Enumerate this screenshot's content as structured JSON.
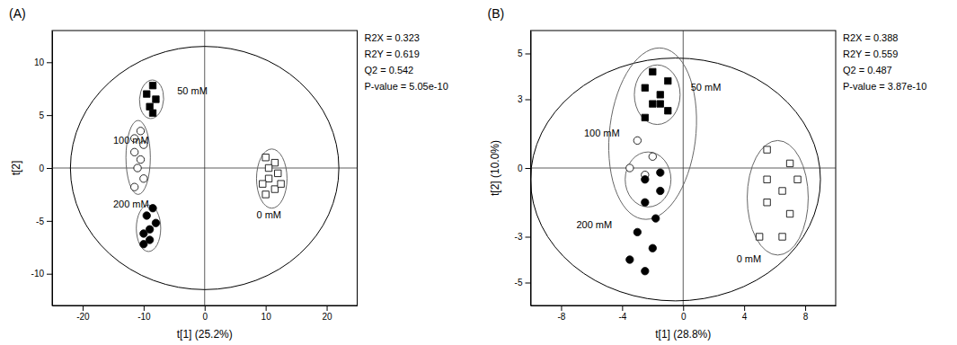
{
  "chart_data": [
    {
      "type": "scatter",
      "title": "(A)",
      "x_label": "t[1] (25.2%)",
      "y_label": "t[2]",
      "xlim": [
        -25,
        25
      ],
      "ylim": [
        -13,
        13
      ],
      "xticks": [
        -20,
        -10,
        0,
        10,
        20
      ],
      "yticks": [
        -10,
        -5,
        0,
        5,
        10
      ],
      "grid": false,
      "annotations": [
        "R2X = 0.323",
        "R2Y = 0.619",
        "Q2 = 0.542",
        "P-value = 5.05e-10"
      ],
      "hlines": [
        0
      ],
      "vlines": [
        0
      ],
      "big_ellipse": {
        "cx": 0,
        "cy": 0,
        "rx": 22,
        "ry": 11.5,
        "angle": 0
      },
      "series": [
        {
          "name": "50 mM",
          "marker": "square",
          "color": "black",
          "label_pos": [
            -4.5,
            7.2
          ],
          "x": [
            -8.5,
            -9.5,
            -8.0,
            -9.0,
            -8.5
          ],
          "values": [
            7.8,
            7.0,
            6.5,
            5.8,
            5.2
          ],
          "ellipse": {
            "cx": -8.7,
            "cy": 6.5,
            "rx": 2.0,
            "ry": 1.8,
            "angle": 20
          }
        },
        {
          "name": "100 mM",
          "marker": "circle",
          "color": "white",
          "label_pos": [
            -15.0,
            2.5
          ],
          "x": [
            -10.5,
            -11.5,
            -10.0,
            -11.5,
            -10.5,
            -11.0,
            -10.0,
            -11.5
          ],
          "values": [
            3.5,
            2.8,
            2.2,
            1.5,
            0.8,
            0.0,
            -1.0,
            -1.8
          ],
          "ellipse": {
            "cx": -10.9,
            "cy": 1.0,
            "rx": 2.0,
            "ry": 3.5,
            "angle": 0
          }
        },
        {
          "name": "200 mM",
          "marker": "circle",
          "color": "black",
          "label_pos": [
            -15.0,
            -3.5
          ],
          "x": [
            -8.5,
            -9.5,
            -8.0,
            -9.0,
            -10.0,
            -9.0,
            -10.0
          ],
          "values": [
            -3.8,
            -4.5,
            -5.2,
            -5.8,
            -6.2,
            -6.8,
            -7.2
          ],
          "ellipse": {
            "cx": -9.2,
            "cy": -5.7,
            "rx": 2.0,
            "ry": 2.2,
            "angle": 0
          }
        },
        {
          "name": "0 mM",
          "marker": "square",
          "color": "white",
          "label_pos": [
            8.5,
            -4.5
          ],
          "x": [
            10.0,
            11.5,
            10.5,
            12.0,
            10.5,
            9.5,
            11.5,
            10.0,
            12.5
          ],
          "values": [
            1.0,
            0.5,
            0.0,
            -0.5,
            -1.0,
            -1.5,
            -2.0,
            -2.5,
            -1.5
          ],
          "ellipse": {
            "cx": 11.0,
            "cy": -1.0,
            "rx": 2.5,
            "ry": 2.8,
            "angle": 0
          }
        }
      ]
    },
    {
      "type": "scatter",
      "title": "(B)",
      "x_label": "t[1] (28.8%)",
      "y_label": "t[2] (10.0%)",
      "xlim": [
        -10,
        10
      ],
      "ylim": [
        -6,
        6
      ],
      "xticks": [
        -8,
        -4,
        0,
        4,
        8
      ],
      "yticks": [
        -5,
        -3,
        0,
        3,
        5
      ],
      "grid": false,
      "annotations": [
        "R2X = 0.388",
        "R2Y = 0.559",
        "Q2 = 0.487",
        "P-value = 3.87e-10"
      ],
      "hlines": [
        0
      ],
      "vlines": [
        0
      ],
      "big_ellipse": {
        "cx": -0.5,
        "cy": -0.5,
        "rx": 9.5,
        "ry": 5.3,
        "angle": 0
      },
      "ellipses": [
        {
          "cx": -2.0,
          "cy": 1.5,
          "rx": 2.8,
          "ry": 3.8,
          "angle": -15
        }
      ],
      "series": [
        {
          "name": "50 mM",
          "marker": "square",
          "color": "black",
          "label_pos": [
            0.5,
            3.5
          ],
          "x": [
            -2.0,
            -1.0,
            -2.5,
            -1.5,
            -2.0,
            -1.0,
            -2.5,
            -1.5
          ],
          "values": [
            4.2,
            3.8,
            3.5,
            3.2,
            2.8,
            2.5,
            2.2,
            2.8
          ],
          "ellipse": {
            "cx": -1.7,
            "cy": 3.2,
            "rx": 1.5,
            "ry": 1.3,
            "angle": 0
          }
        },
        {
          "name": "100 mM",
          "marker": "circle",
          "color": "white",
          "label_pos": [
            -6.5,
            1.5
          ],
          "x": [
            -3.0,
            -2.0,
            -3.5,
            -2.5
          ],
          "values": [
            1.2,
            0.5,
            0.0,
            -0.3
          ]
        },
        {
          "name": "200 mM",
          "marker": "circle",
          "color": "black",
          "label_pos": [
            -7.0,
            -2.5
          ],
          "x": [
            -1.5,
            -2.5,
            -1.5,
            -2.5,
            -1.8,
            -3.0,
            -2.0,
            -3.5,
            -2.5
          ],
          "values": [
            -0.2,
            -0.5,
            -1.0,
            -1.5,
            -2.2,
            -2.8,
            -3.5,
            -4.0,
            -4.5
          ],
          "ellipse": {
            "cx": -2.3,
            "cy": -0.5,
            "rx": 1.5,
            "ry": 1.2,
            "angle": 0
          }
        },
        {
          "name": "0 mM",
          "marker": "square",
          "color": "white",
          "label_pos": [
            3.5,
            -4.0
          ],
          "x": [
            5.5,
            7.0,
            5.5,
            6.5,
            7.5,
            5.5,
            7.0,
            5.0,
            6.5
          ],
          "values": [
            0.8,
            0.2,
            -0.5,
            -1.0,
            -0.5,
            -1.5,
            -2.0,
            -3.0,
            -3.0
          ],
          "ellipse": {
            "cx": 6.2,
            "cy": -1.3,
            "rx": 2.0,
            "ry": 2.5,
            "angle": 0
          }
        }
      ]
    }
  ]
}
